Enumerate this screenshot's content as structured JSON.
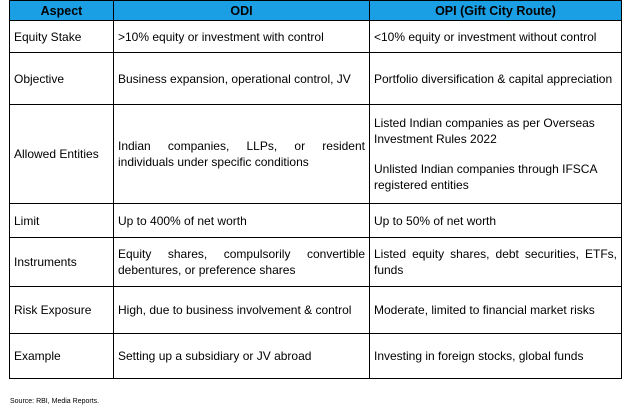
{
  "table": {
    "headers": [
      "Aspect",
      "ODI",
      "OPI (Gift City Route)"
    ],
    "rows": [
      {
        "aspect": "Equity Stake",
        "odi": ">10% equity or investment with control",
        "opi": "<10% equity or investment without control"
      },
      {
        "aspect": "Objective",
        "odi": "Business expansion, operational control, JV",
        "opi": "Portfolio diversification & capital appreciation"
      },
      {
        "aspect": "Allowed Entities",
        "odi": "Indian companies, LLPs, or resident individuals under specific conditions",
        "opi_1": "Listed Indian companies as per Overseas Investment Rules 2022",
        "opi_2": "Unlisted Indian companies through IFSCA registered entities"
      },
      {
        "aspect": "Limit",
        "odi": "Up to 400% of net worth",
        "opi": "Up to 50% of net worth"
      },
      {
        "aspect": "Instruments",
        "odi": "Equity shares, compulsorily convertible debentures, or preference shares",
        "opi": "Listed equity shares, debt securities, ETFs, funds"
      },
      {
        "aspect": "Risk Exposure",
        "odi": "High, due to business involvement & control",
        "opi": "Moderate, limited to financial market risks"
      },
      {
        "aspect": "Example",
        "odi": "Setting up a subsidiary or JV abroad",
        "opi": "Investing in foreign stocks, global funds"
      }
    ]
  },
  "source": "Source: RBI, Media Reports."
}
